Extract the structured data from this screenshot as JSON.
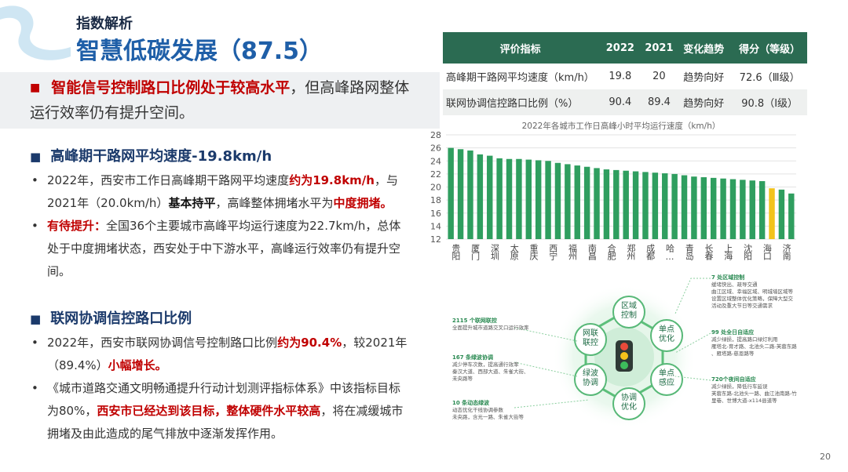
{
  "header": {
    "kicker": "指数解析",
    "title": "智慧低碳发展（87.5）"
  },
  "summary": {
    "runs": [
      {
        "text": "智能信号控制路口比例处于较高水平",
        "style": "red-bold"
      },
      {
        "text": "，但高峰路网整体运行效率仍有提升空间。",
        "style": "plain"
      }
    ]
  },
  "sections": [
    {
      "heading": "高峰期干路网平均速度-19.8km/h",
      "bullets": [
        {
          "runs": [
            {
              "text": "2022年，西安市工作日高峰期干路网平均速度",
              "style": "plain"
            },
            {
              "text": "约为19.8km/h",
              "style": "red-bold"
            },
            {
              "text": "，与2021年（20.0km/h）",
              "style": "plain"
            },
            {
              "text": "基本持平",
              "style": "bold"
            },
            {
              "text": "，高峰整体拥堵水平为",
              "style": "plain"
            },
            {
              "text": "中度拥堵。",
              "style": "red-bold"
            }
          ]
        },
        {
          "runs": [
            {
              "text": "有待提升：",
              "style": "red-bold"
            },
            {
              "text": "全国36个主要城市高峰平均运行速度为22.7km/h，总体处于中度拥堵状态，西安处于中下游水平，高峰运行效率仍有提升空间。",
              "style": "plain"
            }
          ]
        }
      ]
    },
    {
      "heading": "联网协调信控路口比例",
      "bullets": [
        {
          "runs": [
            {
              "text": "2022年，西安市联网协调信号控制路口比例",
              "style": "plain"
            },
            {
              "text": "约为90.4%",
              "style": "red-bold"
            },
            {
              "text": "，较2021年（89.4%）",
              "style": "plain"
            },
            {
              "text": "小幅增长。",
              "style": "red-bold"
            }
          ]
        },
        {
          "runs": [
            {
              "text": "《城市道路交通文明畅通提升行动计划测评指标体系》中该指标目标为80%，",
              "style": "plain"
            },
            {
              "text": "西安市已经达到该目标，整体硬件水平较高",
              "style": "red-bold"
            },
            {
              "text": "，将在减缓城市拥堵及由此造成的尾气排放中逐渐发挥作用。",
              "style": "plain"
            }
          ]
        }
      ]
    }
  ],
  "table": {
    "header": [
      "评价指标",
      "2022",
      "2021",
      "变化趋势",
      "得分（等级）"
    ],
    "rows": [
      [
        "高峰期干路网平均速度（km/h）",
        19.8,
        20,
        "趋势向好",
        "72.6（Ⅲ级）"
      ],
      [
        "联网协调信控路口比例（%）",
        90.4,
        89.4,
        "趋势向好",
        "90.8（Ⅰ级）"
      ]
    ]
  },
  "chart_data": {
    "type": "bar",
    "title": "2022年各城市工作日高峰小时平均运行速度（km/h）",
    "categories": [
      "贵阳",
      null,
      "厦门",
      null,
      "深圳",
      null,
      "太原",
      null,
      "重庆",
      null,
      "西宁",
      null,
      "福州",
      null,
      "南昌",
      null,
      "合肥",
      null,
      "郑州",
      null,
      "成都",
      null,
      "哈…",
      null,
      "青岛",
      null,
      "长春",
      null,
      "上海",
      null,
      "沈阳",
      null,
      "海口",
      null,
      "济南",
      null
    ],
    "values": [
      26,
      25.8,
      25.6,
      25,
      24.8,
      24.4,
      24.3,
      24.3,
      24.2,
      24.1,
      24,
      23.7,
      23.5,
      23.3,
      23.1,
      22.9,
      22.7,
      22.6,
      22.5,
      22.4,
      22.3,
      22.2,
      22.1,
      22,
      21.8,
      21.6,
      21.5,
      21.4,
      21.3,
      21.2,
      21.1,
      21,
      20.9,
      19.8,
      19.6,
      19
    ],
    "colors": [
      "#2f9e5f",
      "#2f9e5f",
      "#2f9e5f",
      "#2f9e5f",
      "#2f9e5f",
      "#2f9e5f",
      "#2f9e5f",
      "#2f9e5f",
      "#2f9e5f",
      "#2f9e5f",
      "#2f9e5f",
      "#2f9e5f",
      "#2f9e5f",
      "#2f9e5f",
      "#2f9e5f",
      "#2f9e5f",
      "#2f9e5f",
      "#2f9e5f",
      "#2f9e5f",
      "#2f9e5f",
      "#2f9e5f",
      "#2f9e5f",
      "#2f9e5f",
      "#2f9e5f",
      "#2f9e5f",
      "#2f9e5f",
      "#2f9e5f",
      "#2f9e5f",
      "#2f9e5f",
      "#2f9e5f",
      "#2f9e5f",
      "#2f9e5f",
      "#2f9e5f",
      "#f2c31b",
      "#2f9e5f",
      "#2f9e5f"
    ],
    "ylim": [
      12,
      28
    ],
    "yticks": [
      12,
      14,
      16,
      18,
      20,
      22,
      24,
      26,
      28
    ],
    "grid": true
  },
  "diagram": {
    "nodes": [
      "区域控制",
      "单点优化",
      "单点感应",
      "协调优化",
      "绿波协调",
      "网联联控"
    ],
    "callouts": [
      {
        "title": "7 处区域控制",
        "lines": [
          "缓堵快出、疏导交通",
          "曲江区域、幸福区域、明城墙区域等",
          "设置区域整体优化策略，保障大型交",
          "活动及重大节日等交通需求"
        ]
      },
      {
        "title": "99 处全日自适应",
        "lines": [
          "减少绿损，提高路口绿灯利用",
          "雁塔北-育才路、北池头二路-芙蓉东路",
          "、雁塔路-慈恩路等"
        ]
      },
      {
        "title": "720个夜间自适应",
        "lines": [
          "减少绿损，降低行车延误",
          "芙蓉东路-北池头一路、曲江池南路-竹",
          "里巷、世博大道-x114县道等"
        ]
      },
      {
        "title": "2115 个联网联控",
        "lines": [
          "全面提升城市道路交叉口运行效率"
        ]
      },
      {
        "title": "167 条绿波协调",
        "lines": [
          "减少停车次数，提高通行效率",
          "秦汉大道、西部大道、朱雀大街、",
          "未央路等"
        ]
      },
      {
        "title": "10 条动态绿波",
        "lines": [
          "动态优化干线协调参数",
          "未央路，含光一路、朱雀大街等"
        ]
      }
    ]
  },
  "page_number": "20"
}
